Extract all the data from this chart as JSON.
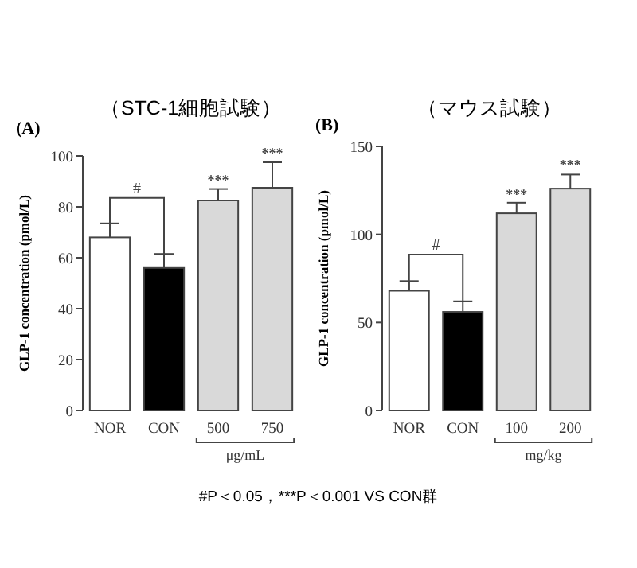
{
  "chart_data": [
    {
      "type": "bar",
      "title": "（STC-1細胞試験）",
      "subtitle": "(A)",
      "categories": [
        "NOR",
        "CON",
        "500",
        "750"
      ],
      "values": [
        68,
        56,
        82.5,
        87.5
      ],
      "colors": [
        "#ffffff",
        "#000000",
        "#d9d9d9",
        "#d9d9d9"
      ],
      "errors": [
        [
          68,
          73.5
        ],
        [
          56,
          61.5
        ],
        [
          82.5,
          87
        ],
        [
          87.5,
          97.5
        ]
      ],
      "ylim": [
        0,
        100
      ],
      "yticks": [
        0,
        20,
        40,
        60,
        80,
        100
      ],
      "ylabel": "GLP-1 concentration (pmol/L)",
      "xlabel": "μg/mL",
      "annotations": [
        "#",
        {
          "text": "***",
          "x": "500",
          "y": 87
        },
        {
          "text": "***",
          "x": "750",
          "y": 97.5
        }
      ]
    },
    {
      "type": "bar",
      "title": "（マウス試験）",
      "subtitle": "(B)",
      "categories": [
        "NOR",
        "CON",
        "100",
        "200"
      ],
      "values": [
        68,
        56,
        112,
        126
      ],
      "colors": [
        "#ffffff",
        "#000000",
        "#d9d9d9",
        "#d9d9d9"
      ],
      "errors": [
        [
          68,
          73.5
        ],
        [
          56,
          62
        ],
        [
          112,
          118
        ],
        [
          126,
          134
        ]
      ],
      "ylim": [
        0,
        150
      ],
      "yticks": [
        0,
        50,
        100,
        150
      ],
      "ylabel": "GLP-1 concentration (pmol/L)",
      "xlabel": "mg/kg",
      "annotations": [
        "#",
        {
          "text": "***",
          "x": "100",
          "y": 117.5
        },
        {
          "text": "***",
          "x": "200",
          "y": 134
        },
        "#P＜0.05，***P＜0.001 VS CON群"
      ]
    }
  ]
}
